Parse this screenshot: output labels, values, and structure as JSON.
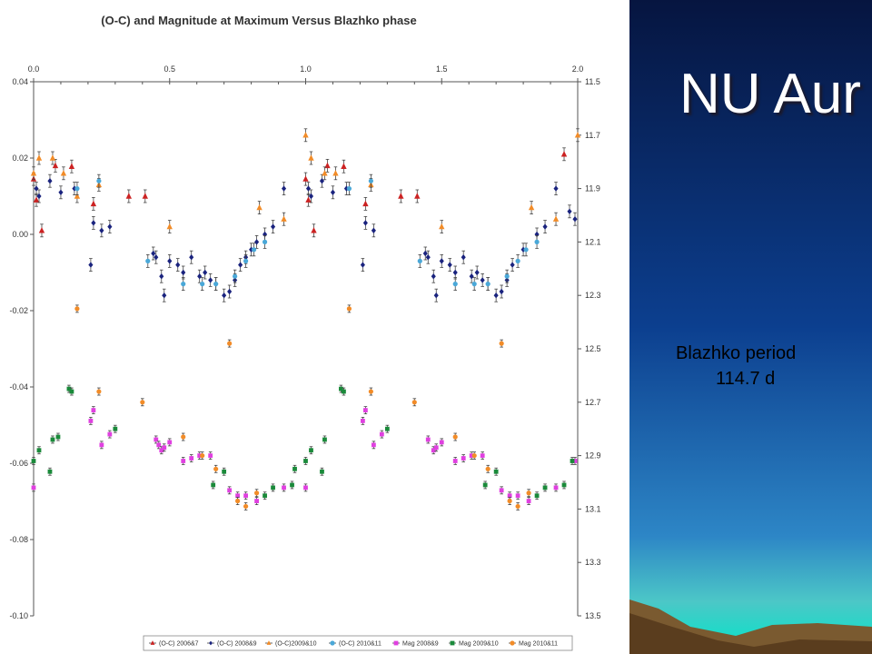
{
  "slide": {
    "title": "NU Aur",
    "period_label": "Blazhko period",
    "period_value": "114.7 d"
  },
  "chart_data": {
    "type": "scatter",
    "title": "(O-C) and Magnitude at Maximum Versus Blazhko phase",
    "xlabel": "",
    "ylabel": "",
    "y2label": "",
    "xlim": [
      0.0,
      2.0
    ],
    "ylim": [
      -0.1,
      0.04
    ],
    "y2lim": [
      11.5,
      13.5
    ],
    "y2_reversed": true,
    "grid": false,
    "legend_position": "bottom",
    "x_ticks": [
      "0.0",
      "0.5",
      "1.0",
      "1.5",
      "2.0"
    ],
    "y_ticks": [
      "0.04",
      "0.02",
      "0.00",
      "-0.02",
      "-0.04",
      "-0.06",
      "-0.08",
      "-0.10"
    ],
    "y2_ticks": [
      "11.5",
      "11.7",
      "11.9",
      "12.1",
      "12.3",
      "12.5",
      "12.7",
      "12.9",
      "13.1",
      "13.3",
      "13.5"
    ],
    "series": [
      {
        "name": "(O-C) 2006&7",
        "axis": "left",
        "marker": "triangle",
        "color": "#cc2222",
        "points": [
          [
            0.0,
            0.0145
          ],
          [
            0.01,
            0.009
          ],
          [
            0.03,
            0.001
          ],
          [
            0.08,
            0.018
          ],
          [
            0.14,
            0.0178
          ],
          [
            0.22,
            0.008
          ],
          [
            0.35,
            0.01
          ],
          [
            0.41,
            0.01
          ],
          [
            1.0,
            0.0145
          ],
          [
            1.01,
            0.009
          ],
          [
            1.03,
            0.001
          ],
          [
            1.08,
            0.018
          ],
          [
            1.14,
            0.0178
          ],
          [
            1.22,
            0.008
          ],
          [
            1.35,
            0.01
          ],
          [
            1.41,
            0.01
          ],
          [
            1.95,
            0.021
          ]
        ]
      },
      {
        "name": "(O-C) 2008&9",
        "axis": "left",
        "marker": "diamond",
        "color": "#1a237e",
        "points": [
          [
            0.01,
            0.012
          ],
          [
            0.02,
            0.01
          ],
          [
            0.06,
            0.014
          ],
          [
            0.1,
            0.011
          ],
          [
            0.15,
            0.012
          ],
          [
            0.21,
            -0.008
          ],
          [
            0.22,
            0.003
          ],
          [
            0.25,
            0.001
          ],
          [
            0.28,
            0.002
          ],
          [
            0.44,
            -0.005
          ],
          [
            0.45,
            -0.006
          ],
          [
            0.47,
            -0.011
          ],
          [
            0.48,
            -0.016
          ],
          [
            0.5,
            -0.007
          ],
          [
            0.53,
            -0.008
          ],
          [
            0.55,
            -0.01
          ],
          [
            0.58,
            -0.006
          ],
          [
            0.61,
            -0.011
          ],
          [
            0.63,
            -0.01
          ],
          [
            0.65,
            -0.012
          ],
          [
            0.67,
            -0.013
          ],
          [
            0.7,
            -0.016
          ],
          [
            0.72,
            -0.015
          ],
          [
            0.74,
            -0.012
          ],
          [
            0.76,
            -0.008
          ],
          [
            0.78,
            -0.006
          ],
          [
            0.8,
            -0.004
          ],
          [
            0.82,
            -0.002
          ],
          [
            0.85,
            0.0
          ],
          [
            0.88,
            0.002
          ],
          [
            0.92,
            0.012
          ],
          [
            1.01,
            0.012
          ],
          [
            1.02,
            0.01
          ],
          [
            1.06,
            0.014
          ],
          [
            1.1,
            0.011
          ],
          [
            1.15,
            0.012
          ],
          [
            1.21,
            -0.008
          ],
          [
            1.22,
            0.003
          ],
          [
            1.25,
            0.001
          ],
          [
            1.44,
            -0.005
          ],
          [
            1.45,
            -0.006
          ],
          [
            1.47,
            -0.011
          ],
          [
            1.48,
            -0.016
          ],
          [
            1.5,
            -0.007
          ],
          [
            1.53,
            -0.008
          ],
          [
            1.55,
            -0.01
          ],
          [
            1.58,
            -0.006
          ],
          [
            1.61,
            -0.011
          ],
          [
            1.63,
            -0.01
          ],
          [
            1.65,
            -0.012
          ],
          [
            1.67,
            -0.013
          ],
          [
            1.7,
            -0.016
          ],
          [
            1.72,
            -0.015
          ],
          [
            1.74,
            -0.012
          ],
          [
            1.76,
            -0.008
          ],
          [
            1.8,
            -0.004
          ],
          [
            1.85,
            0.0
          ],
          [
            1.88,
            0.002
          ],
          [
            1.92,
            0.012
          ],
          [
            1.97,
            0.006
          ],
          [
            1.99,
            0.004
          ]
        ]
      },
      {
        "name": "(O-C)2009&10",
        "axis": "left",
        "marker": "triangle",
        "color": "#f28c28",
        "points": [
          [
            0.0,
            0.016
          ],
          [
            0.02,
            0.02
          ],
          [
            0.07,
            0.02
          ],
          [
            0.11,
            0.016
          ],
          [
            0.16,
            0.01
          ],
          [
            0.24,
            0.013
          ],
          [
            0.5,
            0.002
          ],
          [
            0.83,
            0.007
          ],
          [
            0.92,
            0.004
          ],
          [
            1.0,
            0.026
          ],
          [
            1.02,
            0.02
          ],
          [
            1.07,
            0.016
          ],
          [
            1.11,
            0.016
          ],
          [
            1.24,
            0.013
          ],
          [
            1.5,
            0.002
          ],
          [
            1.83,
            0.007
          ],
          [
            1.92,
            0.004
          ],
          [
            2.0,
            0.026
          ]
        ]
      },
      {
        "name": "(O-C) 2010&11",
        "axis": "left",
        "marker": "circle",
        "color": "#4aa8d8",
        "points": [
          [
            0.16,
            0.012
          ],
          [
            0.24,
            0.014
          ],
          [
            0.42,
            -0.007
          ],
          [
            0.55,
            -0.013
          ],
          [
            0.62,
            -0.013
          ],
          [
            0.67,
            -0.013
          ],
          [
            0.74,
            -0.011
          ],
          [
            0.78,
            -0.007
          ],
          [
            0.81,
            -0.004
          ],
          [
            0.85,
            -0.002
          ],
          [
            1.16,
            0.012
          ],
          [
            1.24,
            0.014
          ],
          [
            1.42,
            -0.007
          ],
          [
            1.55,
            -0.013
          ],
          [
            1.62,
            -0.013
          ],
          [
            1.67,
            -0.013
          ],
          [
            1.74,
            -0.011
          ],
          [
            1.78,
            -0.007
          ],
          [
            1.81,
            -0.004
          ],
          [
            1.85,
            -0.002
          ]
        ]
      },
      {
        "name": "Mag 2008&9",
        "axis": "right",
        "marker": "square",
        "color": "#e040e0",
        "points": [
          [
            0.0,
            13.02
          ],
          [
            0.21,
            12.77
          ],
          [
            0.22,
            12.73
          ],
          [
            0.25,
            12.86
          ],
          [
            0.28,
            12.82
          ],
          [
            0.45,
            12.84
          ],
          [
            0.46,
            12.86
          ],
          [
            0.47,
            12.88
          ],
          [
            0.48,
            12.87
          ],
          [
            0.5,
            12.85
          ],
          [
            0.55,
            12.92
          ],
          [
            0.58,
            12.91
          ],
          [
            0.61,
            12.9
          ],
          [
            0.65,
            12.9
          ],
          [
            0.72,
            13.03
          ],
          [
            0.75,
            13.05
          ],
          [
            0.78,
            13.05
          ],
          [
            0.82,
            13.07
          ],
          [
            0.92,
            13.02
          ],
          [
            1.0,
            13.02
          ],
          [
            1.21,
            12.77
          ],
          [
            1.22,
            12.73
          ],
          [
            1.25,
            12.86
          ],
          [
            1.28,
            12.82
          ],
          [
            1.45,
            12.84
          ],
          [
            1.47,
            12.88
          ],
          [
            1.48,
            12.87
          ],
          [
            1.5,
            12.85
          ],
          [
            1.55,
            12.92
          ],
          [
            1.58,
            12.91
          ],
          [
            1.61,
            12.9
          ],
          [
            1.65,
            12.9
          ],
          [
            1.72,
            13.03
          ],
          [
            1.75,
            13.05
          ],
          [
            1.78,
            13.05
          ],
          [
            1.82,
            13.07
          ],
          [
            1.92,
            13.02
          ],
          [
            1.99,
            12.92
          ]
        ]
      },
      {
        "name": "Mag 2009&10",
        "axis": "right",
        "marker": "square",
        "color": "#1a8a3a",
        "points": [
          [
            0.0,
            12.92
          ],
          [
            0.02,
            12.88
          ],
          [
            0.06,
            12.96
          ],
          [
            0.07,
            12.84
          ],
          [
            0.09,
            12.83
          ],
          [
            0.13,
            12.65
          ],
          [
            0.14,
            12.66
          ],
          [
            0.3,
            12.8
          ],
          [
            0.66,
            13.01
          ],
          [
            0.7,
            12.96
          ],
          [
            0.85,
            13.05
          ],
          [
            0.88,
            13.02
          ],
          [
            0.95,
            13.01
          ],
          [
            0.96,
            12.95
          ],
          [
            1.0,
            12.92
          ],
          [
            1.02,
            12.88
          ],
          [
            1.06,
            12.96
          ],
          [
            1.07,
            12.84
          ],
          [
            1.13,
            12.65
          ],
          [
            1.14,
            12.66
          ],
          [
            1.3,
            12.8
          ],
          [
            1.66,
            13.01
          ],
          [
            1.7,
            12.96
          ],
          [
            1.85,
            13.05
          ],
          [
            1.88,
            13.02
          ],
          [
            1.95,
            13.01
          ],
          [
            1.98,
            12.92
          ]
        ]
      },
      {
        "name": "Mag 2010&11",
        "axis": "right",
        "marker": "circle",
        "color": "#f28c28",
        "points": [
          [
            0.16,
            12.35
          ],
          [
            0.24,
            12.66
          ],
          [
            0.4,
            12.7
          ],
          [
            0.55,
            12.83
          ],
          [
            0.62,
            12.9
          ],
          [
            0.67,
            12.95
          ],
          [
            0.72,
            12.48
          ],
          [
            0.75,
            13.07
          ],
          [
            0.78,
            13.09
          ],
          [
            0.82,
            13.04
          ],
          [
            1.16,
            12.35
          ],
          [
            1.24,
            12.66
          ],
          [
            1.4,
            12.7
          ],
          [
            1.55,
            12.83
          ],
          [
            1.62,
            12.9
          ],
          [
            1.67,
            12.95
          ],
          [
            1.72,
            12.48
          ],
          [
            1.75,
            13.07
          ],
          [
            1.78,
            13.09
          ],
          [
            1.82,
            13.04
          ]
        ]
      }
    ]
  }
}
